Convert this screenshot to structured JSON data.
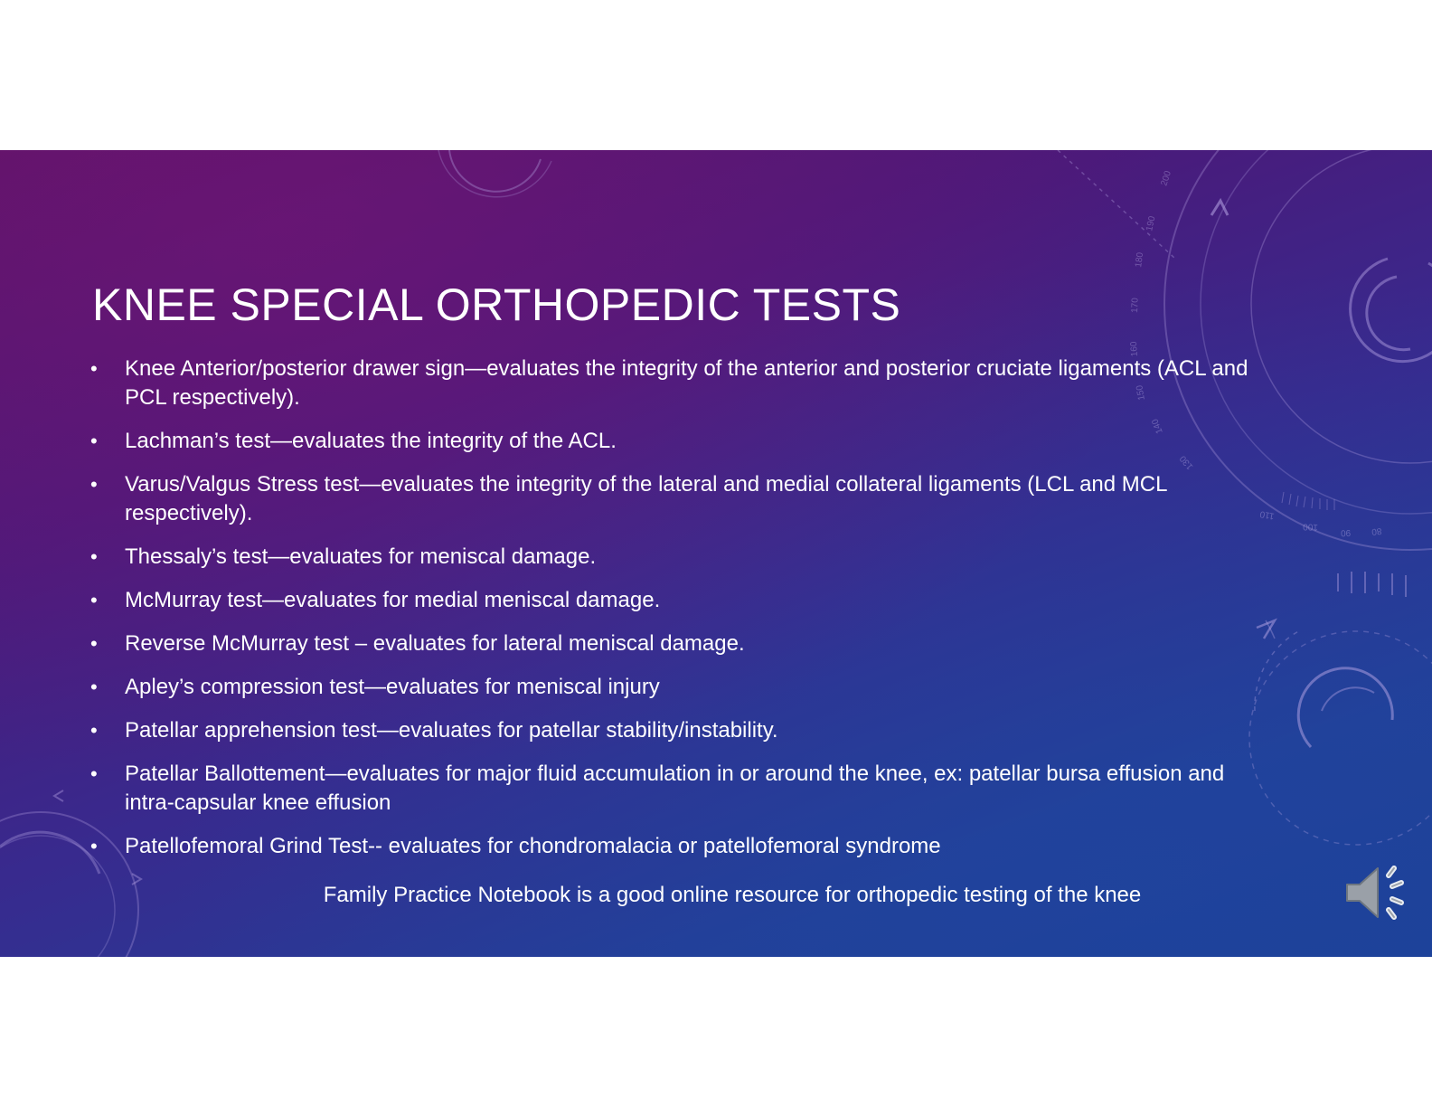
{
  "slide": {
    "title": "KNEE SPECIAL ORTHOPEDIC TESTS",
    "bullet_symbol": "•",
    "bullets": [
      "Knee Anterior/posterior drawer sign—evaluates the integrity of the anterior and posterior cruciate ligaments (ACL and PCL respectively).",
      "Lachman’s test—evaluates the integrity of the ACL.",
      "Varus/Valgus Stress test—evaluates the integrity of the lateral and medial collateral ligaments (LCL and MCL respectively).",
      "Thessaly’s test—evaluates for meniscal damage.",
      "McMurray test—evaluates for medial meniscal damage.",
      "Reverse McMurray test – evaluates for lateral meniscal damage.",
      "Apley’s compression test—evaluates for meniscal injury",
      "Patellar apprehension test—evaluates for patellar stability/instability.",
      "Patellar Ballottement—evaluates for major fluid accumulation in or around  the knee, ex: patellar bursa effusion and intra-capsular knee effusion",
      "Patellofemoral Grind Test-- evaluates for chondromalacia or patellofemoral syndrome"
    ],
    "footer_note": "Family Practice Notebook is a good online resource for orthopedic testing of the knee",
    "audio_icon": "speaker-icon",
    "decor_numbers": [
      "200",
      "190",
      "180",
      "170",
      "160",
      "150",
      "140",
      "130",
      "120",
      "110",
      "100",
      "90",
      "80"
    ]
  },
  "colors": {
    "text": "#ffffff",
    "gradient_top": "#5a1466",
    "gradient_bottom": "#1c3f96",
    "page_background": "#ffffff"
  }
}
